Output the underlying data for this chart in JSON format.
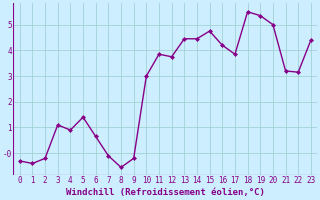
{
  "x": [
    0,
    1,
    2,
    3,
    4,
    5,
    6,
    7,
    8,
    9,
    10,
    11,
    12,
    13,
    14,
    15,
    16,
    17,
    18,
    19,
    20,
    21,
    22,
    23
  ],
  "y": [
    -0.3,
    -0.4,
    -0.2,
    1.1,
    0.9,
    1.4,
    0.65,
    -0.1,
    -0.55,
    -0.2,
    3.0,
    3.85,
    3.75,
    4.45,
    4.45,
    4.75,
    4.2,
    3.85,
    5.5,
    5.35,
    5.0,
    3.2,
    3.15,
    4.4
  ],
  "line_color": "#880088",
  "marker": "D",
  "marker_size": 2.0,
  "xlabel": "Windchill (Refroidissement éolien,°C)",
  "xlabel_fontsize": 6.5,
  "xlim": [
    -0.5,
    23.5
  ],
  "ylim": [
    -0.85,
    5.85
  ],
  "yticks": [
    0,
    1,
    2,
    3,
    4,
    5
  ],
  "ytick_labels": [
    "-0",
    "1",
    "2",
    "3",
    "4",
    "5"
  ],
  "xticks": [
    0,
    1,
    2,
    3,
    4,
    5,
    6,
    7,
    8,
    9,
    10,
    11,
    12,
    13,
    14,
    15,
    16,
    17,
    18,
    19,
    20,
    21,
    22,
    23
  ],
  "background_color": "#cceeff",
  "grid_color": "#99cccc",
  "tick_fontsize": 5.5,
  "linewidth": 1.0,
  "grid_linewidth": 0.5
}
